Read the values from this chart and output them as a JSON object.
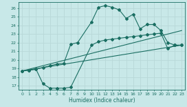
{
  "xlabel": "Humidex (Indice chaleur)",
  "background_color": "#c8e8e8",
  "grid_color": "#b0d8d8",
  "line_color": "#1a6e62",
  "xlim": [
    -0.5,
    23.5
  ],
  "ylim": [
    16.5,
    26.7
  ],
  "xticks": [
    0,
    1,
    2,
    3,
    4,
    5,
    6,
    7,
    8,
    9,
    10,
    11,
    12,
    13,
    14,
    15,
    16,
    17,
    18,
    19,
    20,
    21,
    22,
    23
  ],
  "yticks": [
    17,
    18,
    19,
    20,
    21,
    22,
    23,
    24,
    25,
    26
  ],
  "curve1_x": [
    0,
    1,
    2,
    3,
    4,
    5,
    6,
    7,
    8,
    10,
    11,
    12,
    13,
    14,
    15,
    16,
    17,
    18,
    19,
    20,
    21,
    22,
    23
  ],
  "curve1_y": [
    18.7,
    18.8,
    18.9,
    19.1,
    19.3,
    19.5,
    19.6,
    21.8,
    22.0,
    24.4,
    26.1,
    26.3,
    26.1,
    25.8,
    24.8,
    25.3,
    23.6,
    24.1,
    24.1,
    23.4,
    22.0,
    21.7,
    21.7
  ],
  "curve2_x": [
    0,
    23
  ],
  "curve2_y": [
    18.7,
    23.4
  ],
  "curve3_x": [
    0,
    23
  ],
  "curve3_y": [
    18.7,
    21.7
  ],
  "curve4_x": [
    0,
    1,
    2,
    3,
    4,
    5,
    6,
    7,
    10,
    11,
    12,
    13,
    14,
    15,
    16,
    17,
    18,
    19,
    20,
    21,
    22,
    23
  ],
  "curve4_y": [
    18.7,
    18.8,
    18.9,
    17.2,
    16.7,
    16.7,
    16.7,
    16.8,
    21.7,
    22.1,
    22.3,
    22.4,
    22.5,
    22.6,
    22.7,
    22.8,
    22.9,
    23.0,
    23.1,
    21.3,
    21.7,
    21.7
  ]
}
